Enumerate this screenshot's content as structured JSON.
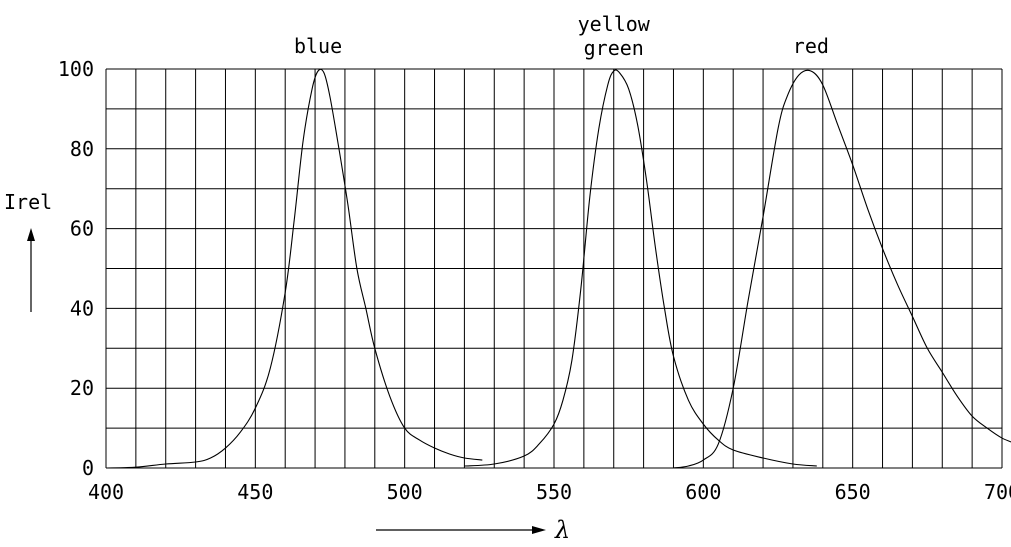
{
  "chart_data": {
    "type": "line",
    "title": "",
    "xlabel": "λ",
    "ylabel": "Irel",
    "xlim": [
      400,
      700
    ],
    "ylim": [
      0,
      100
    ],
    "x_ticks": [
      400,
      450,
      500,
      550,
      600,
      650,
      700
    ],
    "y_ticks": [
      0,
      20,
      40,
      60,
      80,
      100
    ],
    "grid": true,
    "series": [
      {
        "name": "blue",
        "x": [
          400,
          410,
          420,
          430,
          435,
          440,
          445,
          450,
          455,
          460,
          463,
          466,
          469,
          471,
          473,
          475,
          478,
          481,
          484,
          487,
          490,
          495,
          500,
          505,
          510,
          515,
          520,
          526
        ],
        "y": [
          0,
          0.2,
          1,
          1.5,
          2.5,
          5,
          9,
          15,
          25,
          44,
          62,
          82,
          95,
          99.5,
          99,
          93,
          80,
          66,
          50,
          40,
          30,
          18,
          10,
          7,
          5,
          3.5,
          2.5,
          2
        ]
      },
      {
        "name": "yellow\ngreen",
        "x": [
          520,
          530,
          540,
          545,
          550,
          553,
          556,
          559,
          562,
          565,
          568,
          570,
          572,
          575,
          578,
          581,
          584,
          587,
          590,
          595,
          600,
          605,
          610,
          620,
          630,
          638
        ],
        "y": [
          0.5,
          1,
          3,
          6,
          11,
          17,
          27,
          45,
          68,
          85,
          96,
          99.5,
          99,
          95,
          86,
          72,
          55,
          40,
          28,
          17,
          11,
          7,
          4.5,
          2.5,
          1,
          0.5
        ]
      },
      {
        "name": "red",
        "x": [
          590,
          595,
          600,
          605,
          610,
          615,
          620,
          625,
          628,
          632,
          636,
          640,
          645,
          650,
          655,
          660,
          665,
          670,
          675,
          680,
          685,
          690,
          695,
          700,
          705
        ],
        "y": [
          0,
          0.5,
          2,
          6,
          20,
          42,
          63,
          85,
          93,
          98.5,
          99.5,
          96,
          86,
          76,
          65,
          55,
          46,
          38,
          30,
          24,
          18,
          13,
          10,
          7.5,
          6
        ]
      }
    ]
  }
}
